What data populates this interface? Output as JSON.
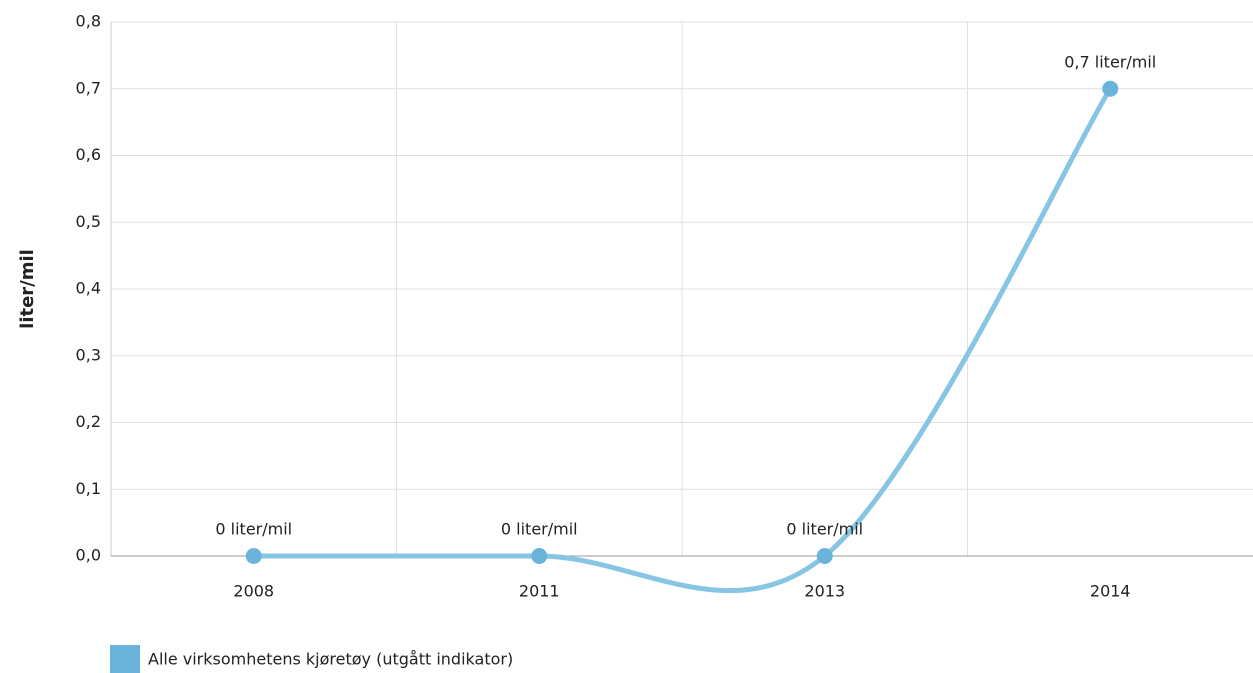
{
  "chart_data": {
    "type": "line",
    "y_label": "liter/mil",
    "categories": [
      "2008",
      "2011",
      "2013",
      "2014"
    ],
    "series": [
      {
        "name": "Alle virksomhetens kjøretøy (utgått indikator)",
        "color": "#6ab4dc",
        "line_color": "#86c5e3",
        "values": [
          0,
          0,
          0,
          0.7
        ],
        "value_labels": [
          "0 liter/mil",
          "0 liter/mil",
          "0 liter/mil",
          "0,7 liter/mil"
        ]
      }
    ],
    "ylim": [
      0,
      0.8
    ],
    "yticks": [
      {
        "value": 0,
        "label": "0,0"
      },
      {
        "value": 0.1,
        "label": "0,1"
      },
      {
        "value": 0.2,
        "label": "0,2"
      },
      {
        "value": 0.3,
        "label": "0,3"
      },
      {
        "value": 0.4,
        "label": "0,4"
      },
      {
        "value": 0.5,
        "label": "0,5"
      },
      {
        "value": 0.6,
        "label": "0,6"
      },
      {
        "value": 0.7,
        "label": "0,7"
      },
      {
        "value": 0.8,
        "label": "0,8"
      }
    ],
    "grid": true
  }
}
